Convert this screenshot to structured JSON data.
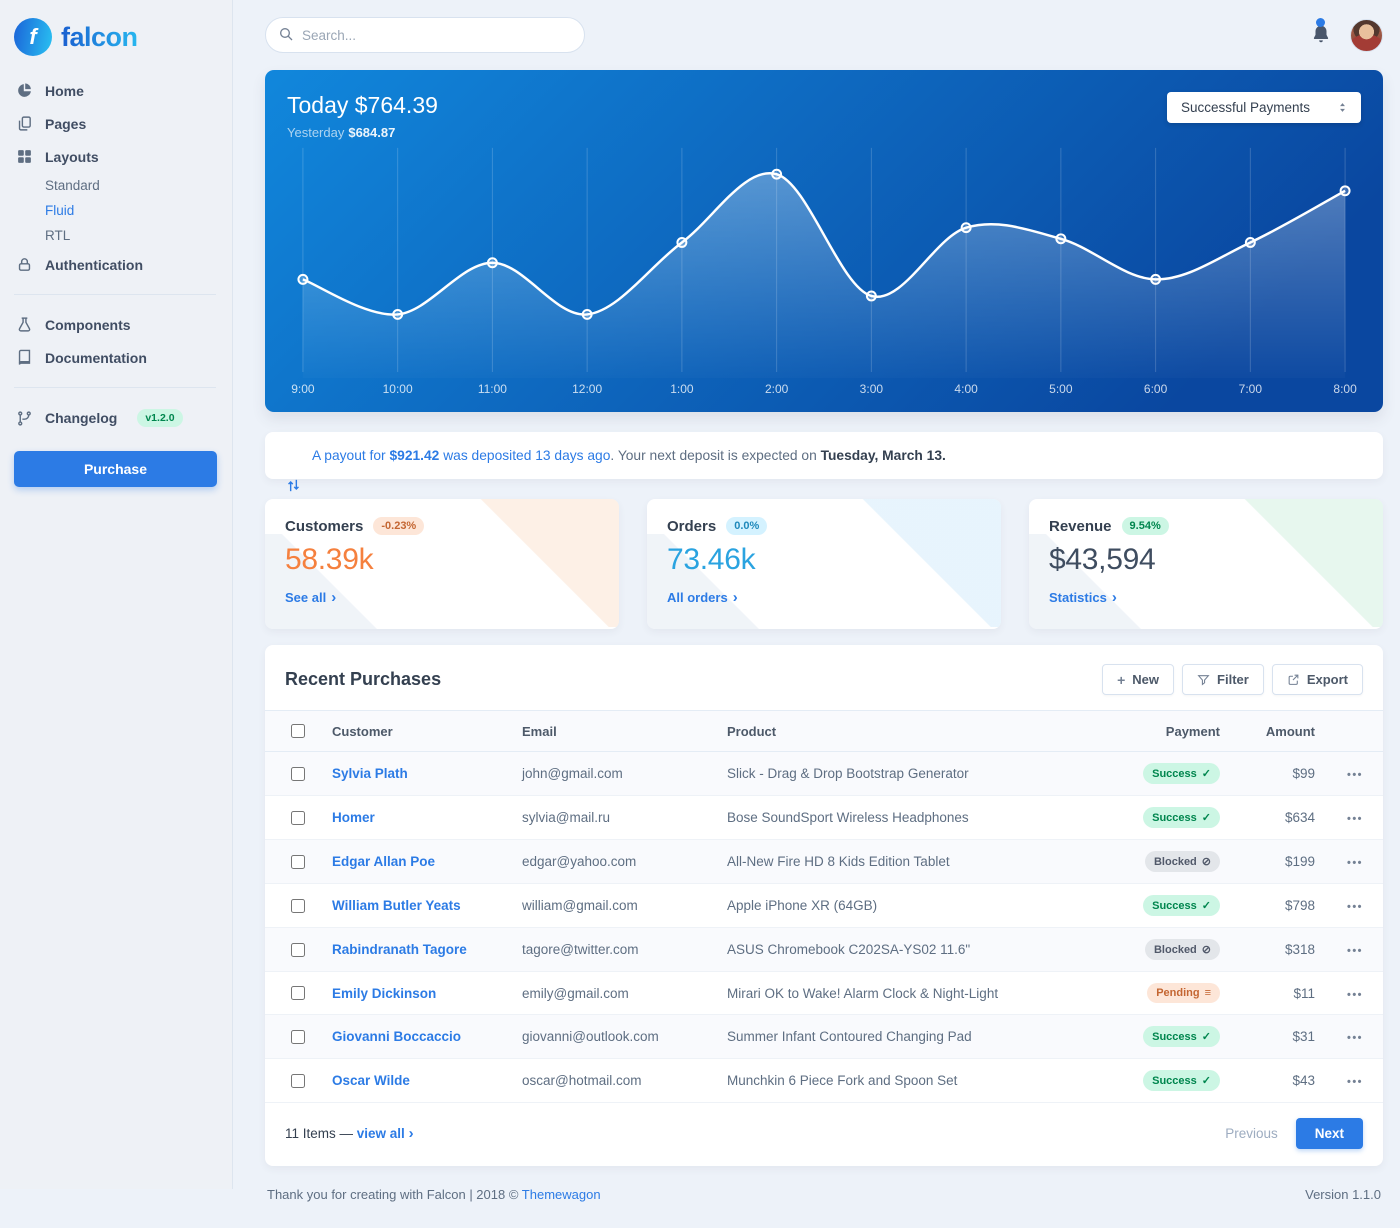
{
  "brand": {
    "name": "falcon"
  },
  "colors": {
    "primary": "#2c7be5",
    "customers_value": "#f5803e",
    "orders_value": "#2aa3e0",
    "revenue_value": "#3f4d60",
    "success_text": "#00864e",
    "chart_gradient_start": "#1187dc",
    "chart_gradient_end": "#0a47a0"
  },
  "icons": {
    "chevron_right": "›",
    "check": "✓",
    "ban": "⊘",
    "stream": "≡",
    "plus": "+",
    "ellipsis": "•••"
  },
  "sidebar": {
    "items": {
      "home": "Home",
      "pages": "Pages",
      "layouts": "Layouts",
      "standard": "Standard",
      "fluid": "Fluid",
      "rtl": "RTL",
      "authentication": "Authentication",
      "components": "Components",
      "documentation": "Documentation",
      "changelog": "Changelog"
    },
    "changelog_badge": "v1.2.0",
    "purchase": "Purchase"
  },
  "topbar": {
    "search_placeholder": "Search..."
  },
  "chart_header": {
    "today_label": "Today",
    "today_value": "$764.39",
    "yesterday_label": "Yesterday",
    "yesterday_value": "$684.87",
    "select_value": "Successful Payments"
  },
  "chart_data": {
    "type": "line",
    "title": "Today $764.39",
    "subtitle": "Yesterday $684.87",
    "series_name": "Successful Payments",
    "x": [
      "9:00",
      "10:00",
      "11:00",
      "12:00",
      "1:00",
      "2:00",
      "3:00",
      "4:00",
      "5:00",
      "6:00",
      "7:00",
      "8:00"
    ],
    "values": [
      47,
      28,
      56,
      28,
      67,
      104,
      38,
      75,
      69,
      47,
      67,
      95
    ],
    "xlabel": "",
    "ylabel": "",
    "ylim": [
      0,
      115
    ],
    "grid": "vertical",
    "legend": "none",
    "line_color": "#ffffff"
  },
  "payout": {
    "link1": "A payout for ",
    "amount": "$921.42 ",
    "link2": "was deposited 13 days ago",
    "mid": ". Your next deposit is expected on ",
    "date": "Tuesday, March 13."
  },
  "stats": [
    {
      "title": "Customers",
      "badge": "-0.23%",
      "value": "58.39k",
      "link": "See all"
    },
    {
      "title": "Orders",
      "badge": "0.0%",
      "value": "73.46k",
      "link": "All orders"
    },
    {
      "title": "Revenue",
      "badge": "9.54%",
      "value": "$43,594",
      "link": "Statistics"
    }
  ],
  "purchases": {
    "title": "Recent Purchases",
    "toolbar": {
      "new": "New",
      "filter": "Filter",
      "export": "Export"
    },
    "headers": [
      "Customer",
      "Email",
      "Product",
      "Payment",
      "Amount"
    ],
    "rows": [
      {
        "customer": "Sylvia Plath",
        "email": "john@gmail.com",
        "product": "Slick - Drag & Drop Bootstrap Generator",
        "payment": "Success",
        "amount": "$99"
      },
      {
        "customer": "Homer",
        "email": "sylvia@mail.ru",
        "product": "Bose SoundSport Wireless Headphones",
        "payment": "Success",
        "amount": "$634"
      },
      {
        "customer": "Edgar Allan Poe",
        "email": "edgar@yahoo.com",
        "product": "All-New Fire HD 8 Kids Edition Tablet",
        "payment": "Blocked",
        "amount": "$199"
      },
      {
        "customer": "William Butler Yeats",
        "email": "william@gmail.com",
        "product": "Apple iPhone XR (64GB)",
        "payment": "Success",
        "amount": "$798"
      },
      {
        "customer": "Rabindranath Tagore",
        "email": "tagore@twitter.com",
        "product": "ASUS Chromebook C202SA-YS02 11.6\"",
        "payment": "Blocked",
        "amount": "$318"
      },
      {
        "customer": "Emily Dickinson",
        "email": "emily@gmail.com",
        "product": "Mirari OK to Wake! Alarm Clock & Night-Light",
        "payment": "Pending",
        "amount": "$11"
      },
      {
        "customer": "Giovanni Boccaccio",
        "email": "giovanni@outlook.com",
        "product": "Summer Infant Contoured Changing Pad",
        "payment": "Success",
        "amount": "$31"
      },
      {
        "customer": "Oscar Wilde",
        "email": "oscar@hotmail.com",
        "product": "Munchkin 6 Piece Fork and Spoon Set",
        "payment": "Success",
        "amount": "$43"
      }
    ],
    "footer": {
      "items_text": "11 Items — ",
      "view_all": "view all",
      "previous": "Previous",
      "next": "Next"
    }
  },
  "page_footer": {
    "thanks": "Thank you for creating with Falcon | 2018 © ",
    "link": "Themewagon",
    "version": "Version 1.1.0"
  }
}
